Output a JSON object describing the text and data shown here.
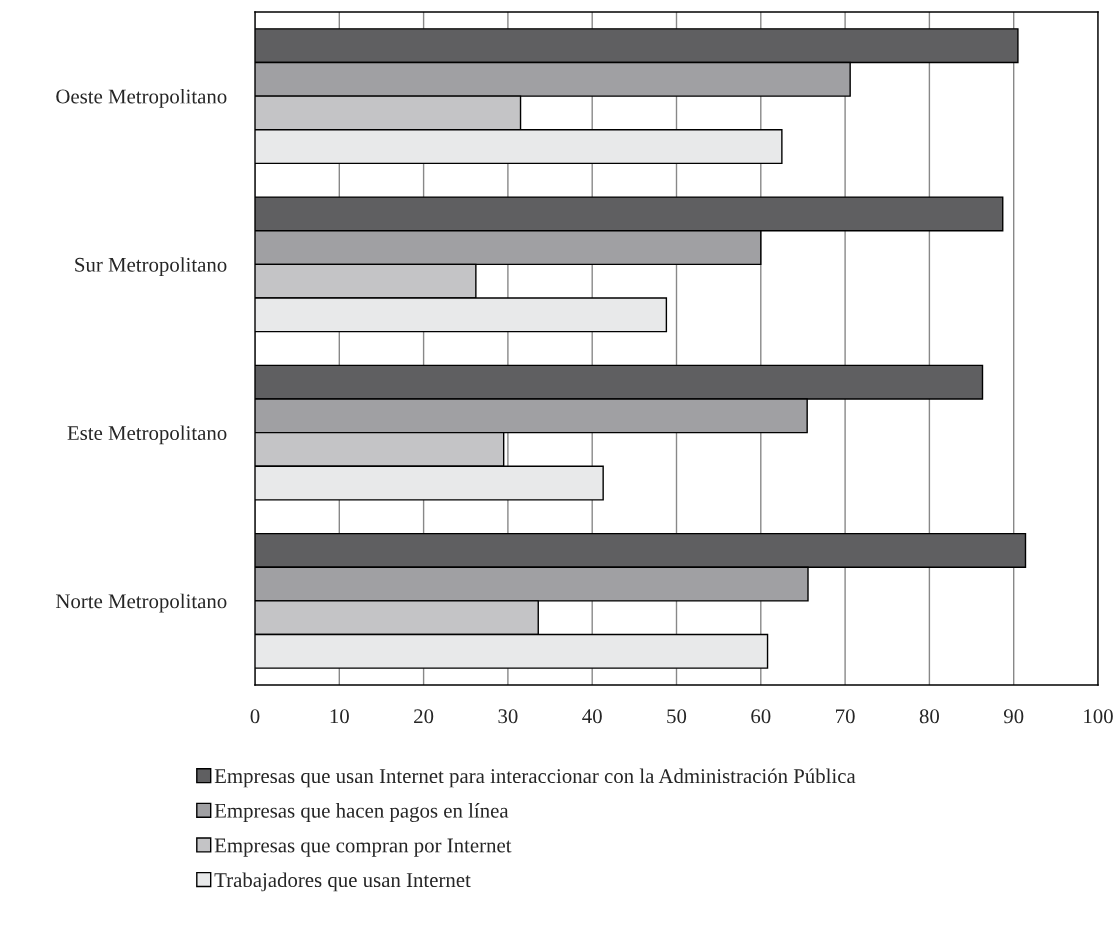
{
  "chart_data": {
    "type": "bar",
    "orientation": "horizontal",
    "categories": [
      "Oeste Metropolitano",
      "Sur Metropolitano",
      "Este Metropolitano",
      "Norte Metropolitano"
    ],
    "series": [
      {
        "name": "Empresas que usan Internet para interaccionar con la Administración Pública",
        "color": "#5f5f61",
        "values": [
          90.5,
          88.7,
          86.3,
          91.4
        ]
      },
      {
        "name": "Empresas que hacen pagos en línea",
        "color": "#a0a0a3",
        "values": [
          70.6,
          60.0,
          65.5,
          65.6
        ]
      },
      {
        "name": "Empresas que compran por Internet",
        "color": "#c4c4c6",
        "values": [
          31.5,
          26.2,
          29.5,
          33.6
        ]
      },
      {
        "name": "Trabajadores que usan Internet",
        "color": "#e8e9ea",
        "values": [
          62.5,
          48.8,
          41.3,
          60.8
        ]
      }
    ],
    "xlim": [
      0,
      100
    ],
    "xticks": [
      0,
      10,
      20,
      30,
      40,
      50,
      60,
      70,
      80,
      90,
      100
    ],
    "grid": "x",
    "legend": "bottom",
    "marker": "square"
  }
}
